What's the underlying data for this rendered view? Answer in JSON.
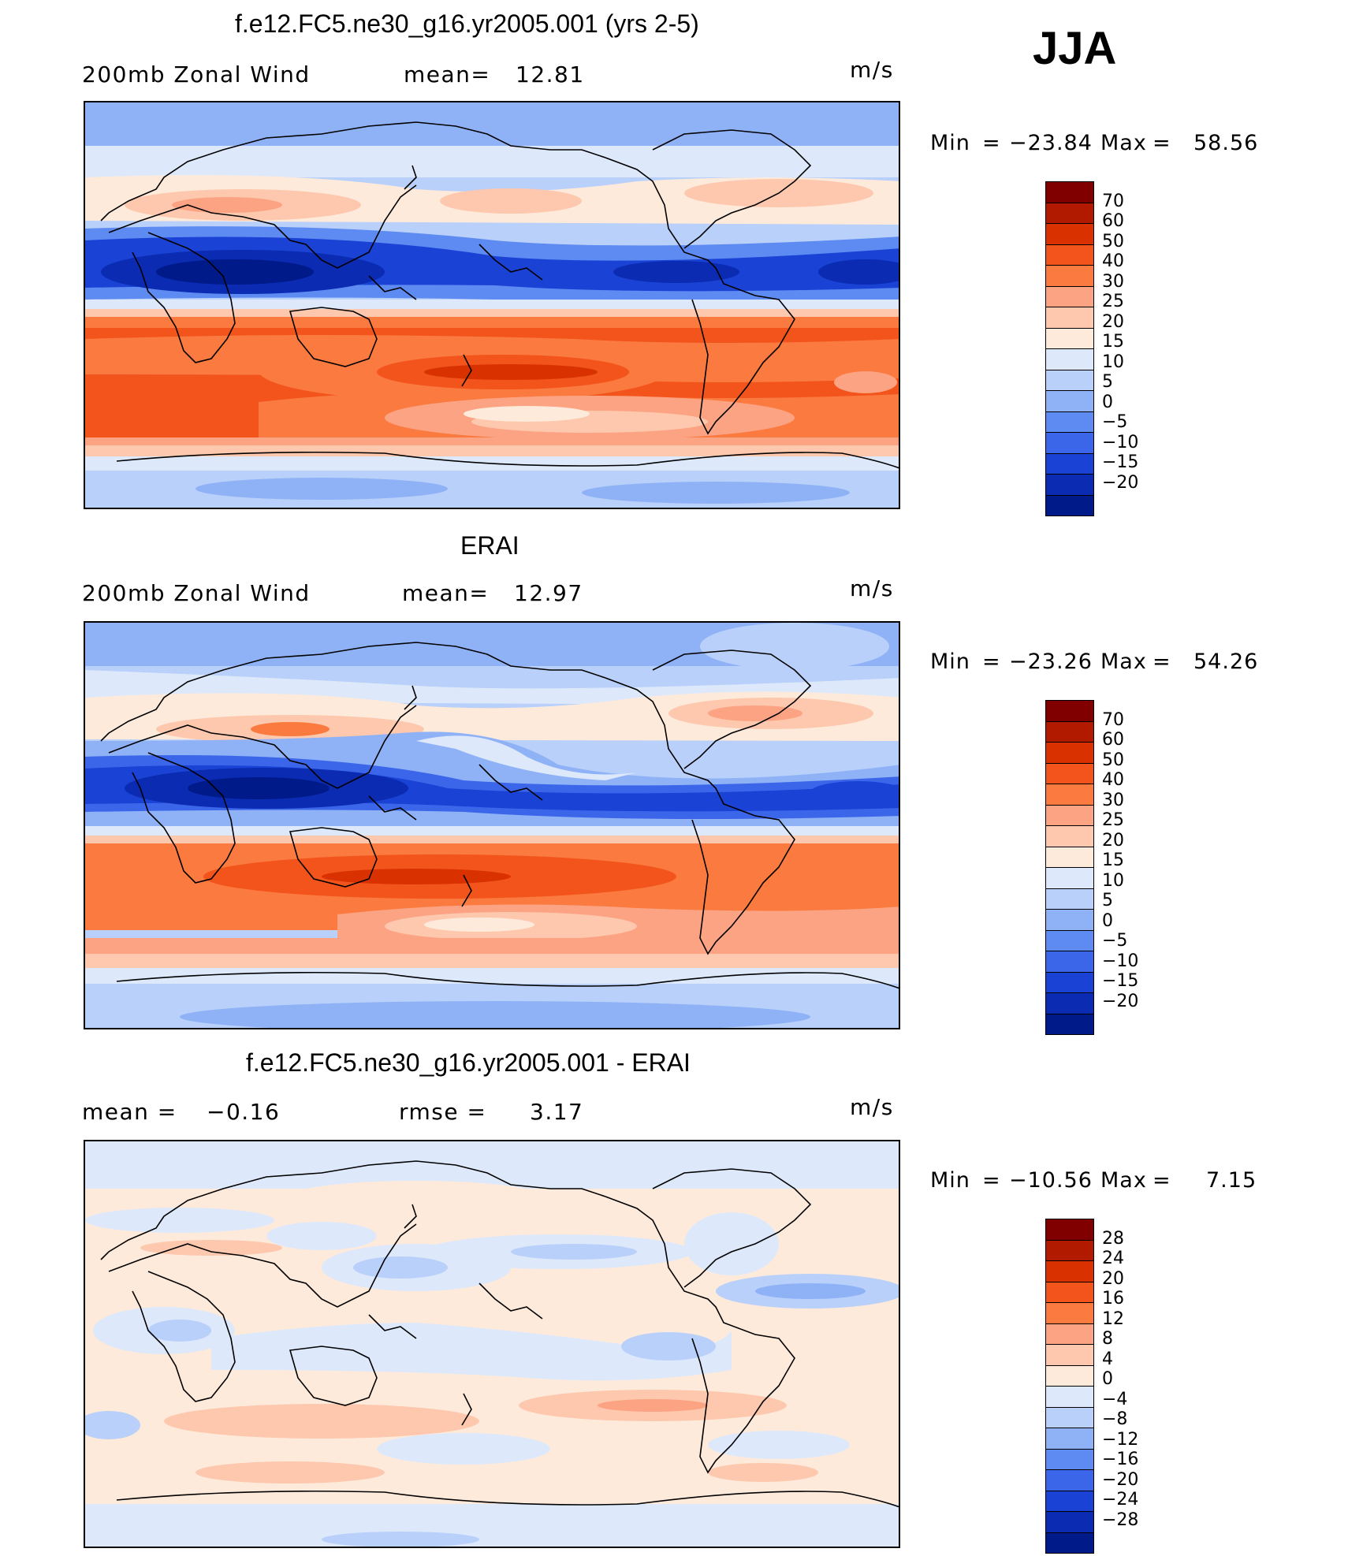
{
  "season": "JJA",
  "panels": [
    {
      "title": "f.e12.FC5.ne30_g16.yr2005.001 (yrs 2-5)",
      "left_label": "200mb Zonal Wind",
      "stat_label": "mean=",
      "stat_value": "12.81",
      "units": "m/s",
      "min_label": "Min",
      "min_value": "−23.84",
      "max_label": "Max",
      "max_value": "58.56"
    },
    {
      "title": "ERAI",
      "left_label": "200mb Zonal Wind",
      "stat_label": "mean=",
      "stat_value": "12.97",
      "units": "m/s",
      "min_label": "Min",
      "min_value": "−23.26",
      "max_label": "Max",
      "max_value": "54.26"
    },
    {
      "title": "f.e12.FC5.ne30_g16.yr2005.001 - ERAI",
      "left_label": "mean =",
      "left_value": "−0.16",
      "stat_label": "rmse =",
      "stat_value": "3.17",
      "units": "m/s",
      "min_label": "Min",
      "min_value": "−10.56",
      "max_label": "Max",
      "max_value": "7.15"
    }
  ],
  "colorbar_field": {
    "colors": [
      "#800000",
      "#b21a00",
      "#d93200",
      "#f2541c",
      "#fa7a3f",
      "#fca383",
      "#fdc8ad",
      "#feeadb",
      "#dde9fb",
      "#b8d0fa",
      "#8fb2f7",
      "#5e8bf1",
      "#3c66ea",
      "#1a43d6",
      "#0a2bb2",
      "#001a8a"
    ],
    "ticks": [
      "70",
      "60",
      "50",
      "40",
      "30",
      "25",
      "20",
      "15",
      "10",
      "5",
      "0",
      "−5",
      "−10",
      "−15",
      "−20"
    ]
  },
  "colorbar_diff": {
    "colors": [
      "#800000",
      "#b21a00",
      "#d93200",
      "#f2541c",
      "#fa7a3f",
      "#fca383",
      "#fdc8ad",
      "#feeadb",
      "#dde9fb",
      "#b8d0fa",
      "#8fb2f7",
      "#5e8bf1",
      "#3c66ea",
      "#1a43d6",
      "#0a2bb2",
      "#001a8a"
    ],
    "ticks": [
      "28",
      "24",
      "20",
      "16",
      "12",
      "8",
      "4",
      "0",
      "−4",
      "−8",
      "−12",
      "−16",
      "−20",
      "−24",
      "−28"
    ]
  }
}
